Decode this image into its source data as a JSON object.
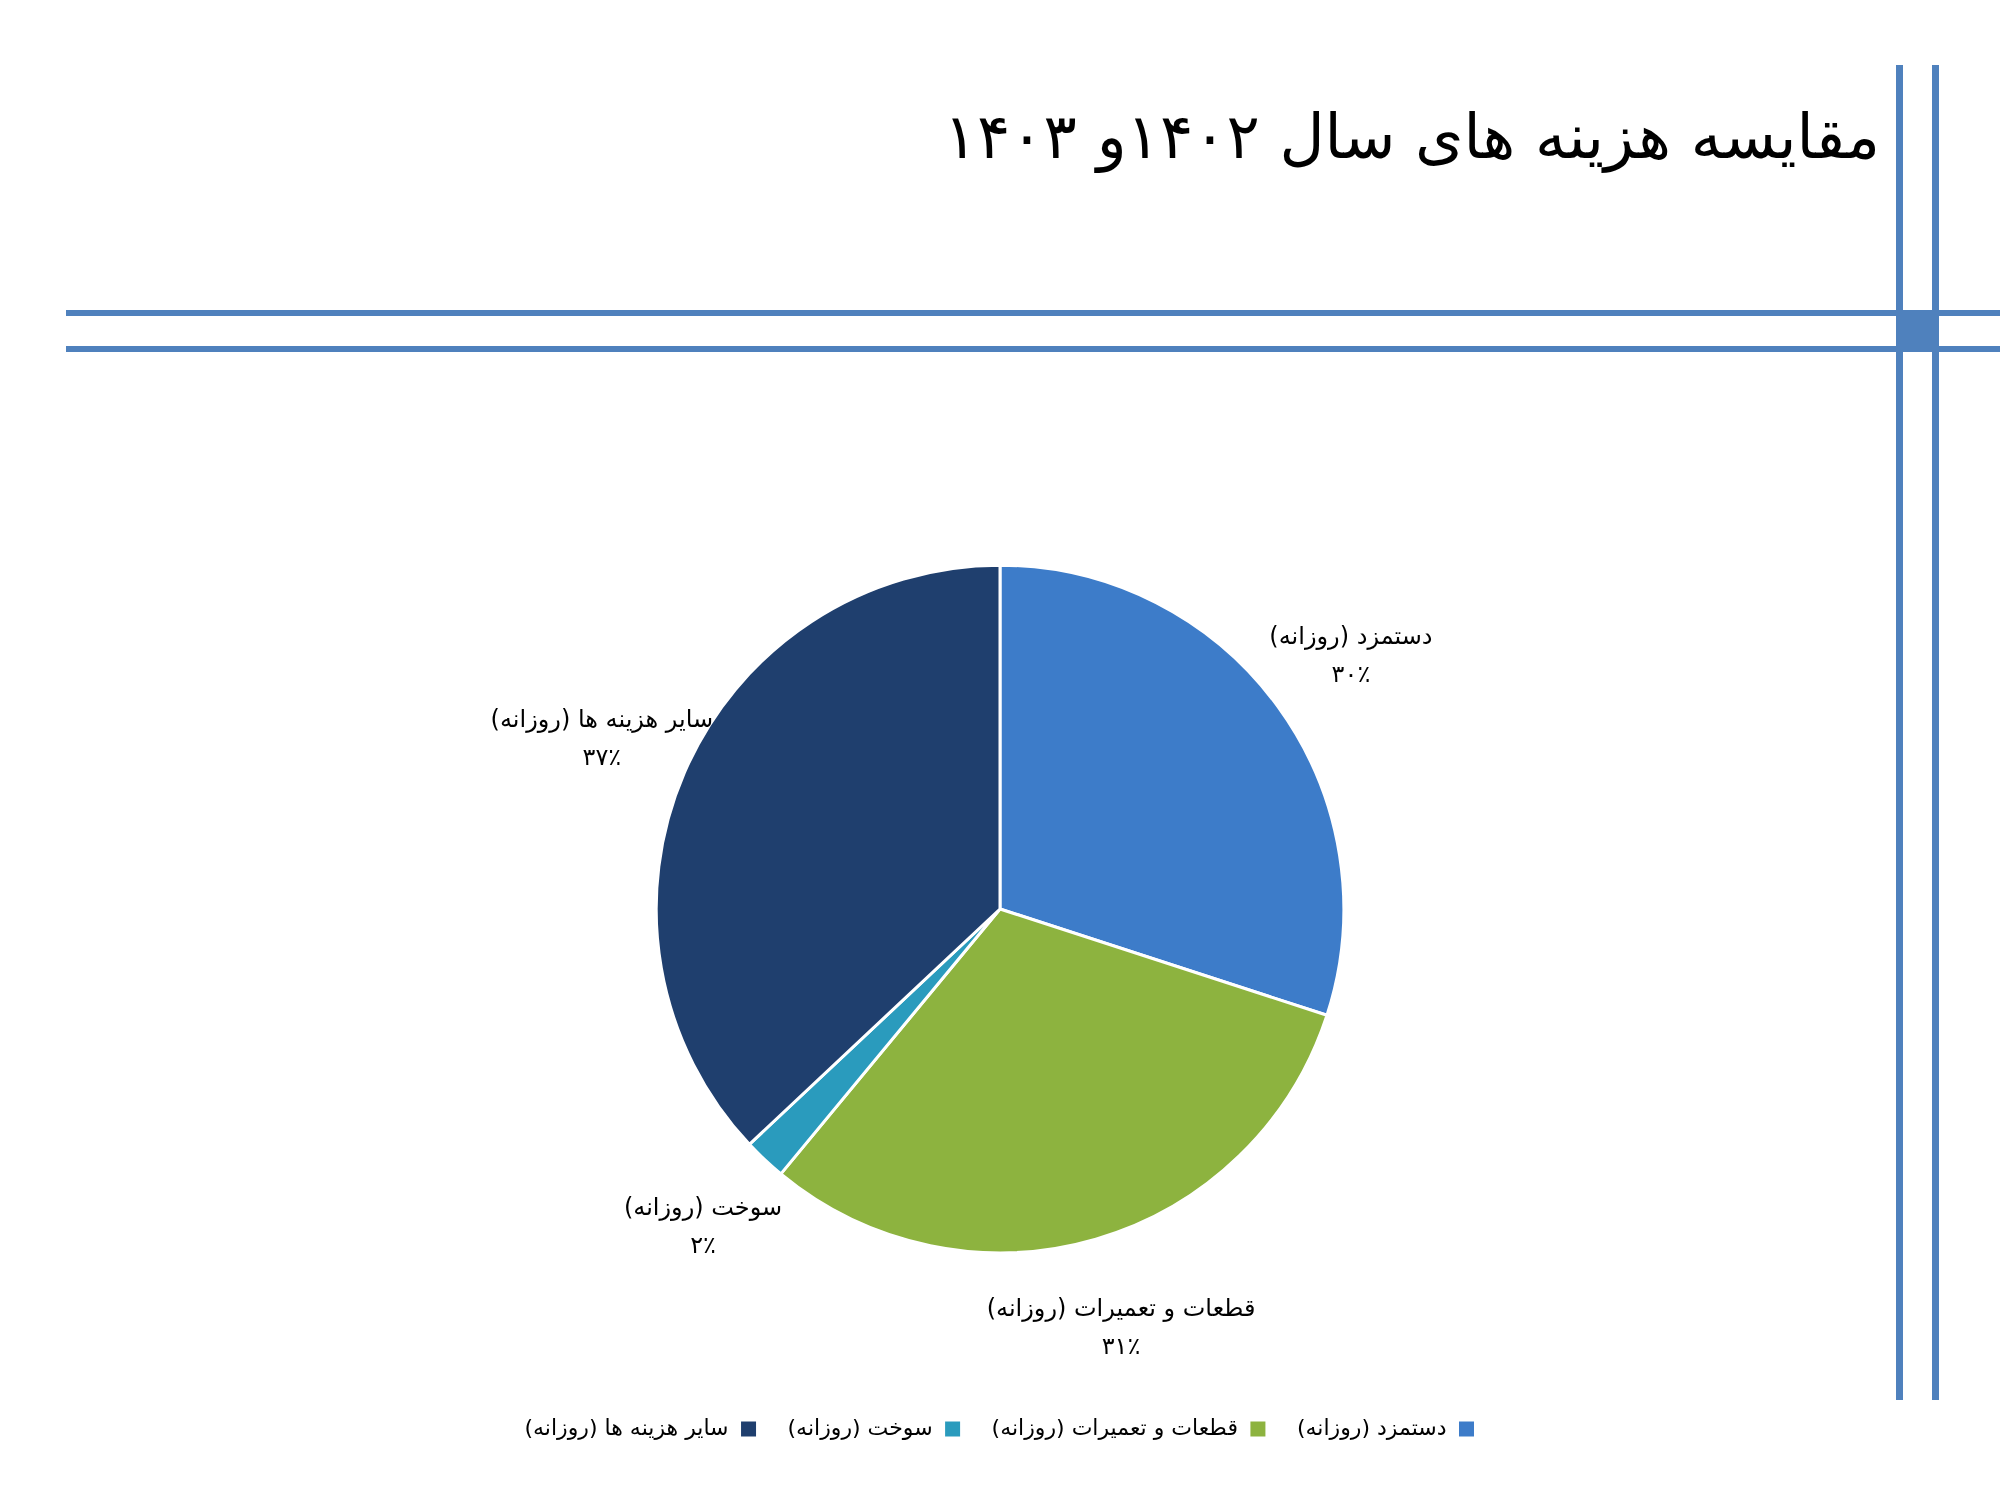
{
  "chart_data": {
    "type": "pie",
    "title": "مقایسه هزینه های سال ۱۴۰۲و ۱۴۰۳",
    "categories": [
      "دستمزد (روزانه)",
      "قطعات و تعمیرات (روزانه)",
      "سوخت (روزانه)",
      "سایر هزینه ها (روزانه)"
    ],
    "values": [
      30,
      31,
      2,
      37
    ],
    "value_labels": [
      "۳۰٪",
      "۳۱٪",
      "۲٪",
      "۳۷٪"
    ],
    "colors": [
      "#3d7cc9",
      "#8db33f",
      "#2a9bbd",
      "#1f3f6e"
    ],
    "legend": "bottom"
  }
}
